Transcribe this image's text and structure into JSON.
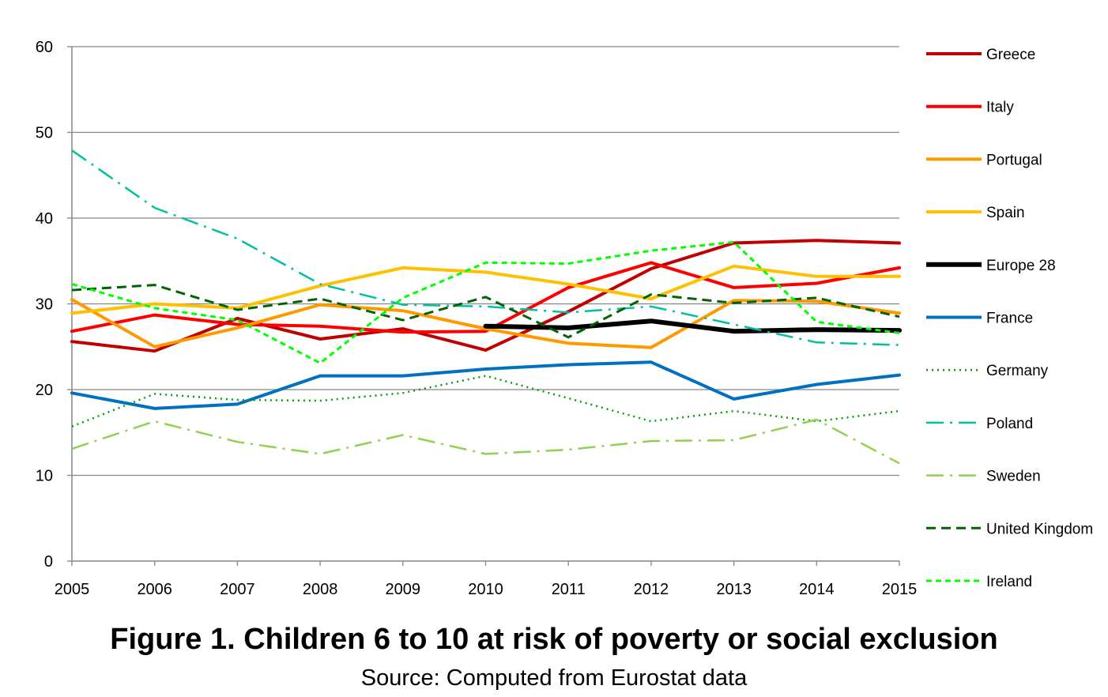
{
  "caption": {
    "title": "Figure 1. Children 6 to 10 at risk of poverty or social exclusion",
    "source": "Source: Computed from Eurostat data"
  },
  "chart_data": {
    "type": "line",
    "title": "",
    "xlabel": "",
    "ylabel": "",
    "x": [
      2005,
      2006,
      2007,
      2008,
      2009,
      2010,
      2011,
      2012,
      2013,
      2014,
      2015
    ],
    "ylim": [
      0,
      60
    ],
    "yticks": [
      0,
      10,
      20,
      30,
      40,
      50,
      60
    ],
    "grid": "horizontal",
    "legend": "right",
    "series": [
      {
        "name": "Greece",
        "color": "#C00000",
        "dash": "solid",
        "width": 4,
        "values": [
          25.6,
          24.5,
          28.3,
          25.9,
          27.1,
          24.6,
          29.1,
          34.1,
          37.1,
          37.4,
          37.1
        ]
      },
      {
        "name": "Italy",
        "color": "#FF0000",
        "dash": "solid",
        "width": 4,
        "values": [
          26.8,
          28.7,
          27.6,
          27.4,
          26.7,
          26.8,
          31.9,
          34.8,
          31.9,
          32.4,
          34.2
        ]
      },
      {
        "name": "Portugal",
        "color": "#FF9900",
        "dash": "solid",
        "width": 4,
        "values": [
          30.5,
          25.0,
          27.2,
          29.9,
          29.2,
          27.1,
          25.4,
          24.9,
          30.4,
          30.3,
          28.9
        ]
      },
      {
        "name": "Spain",
        "color": "#FFC000",
        "dash": "solid",
        "width": 4,
        "values": [
          28.9,
          30.0,
          29.5,
          32.1,
          34.2,
          33.7,
          32.3,
          30.6,
          34.4,
          33.2,
          33.2
        ]
      },
      {
        "name": "Europe 28",
        "color": "#000000",
        "dash": "solid",
        "width": 6,
        "values": [
          null,
          null,
          null,
          null,
          null,
          27.4,
          27.2,
          28.0,
          26.8,
          27.0,
          26.9
        ]
      },
      {
        "name": "France",
        "color": "#0070C0",
        "dash": "solid",
        "width": 4,
        "values": [
          19.6,
          17.8,
          18.3,
          21.6,
          21.6,
          22.4,
          22.9,
          23.2,
          18.9,
          20.6,
          21.7
        ]
      },
      {
        "name": "Germany",
        "color": "#00A000",
        "dash": "dot",
        "width": 2.5,
        "values": [
          15.7,
          19.5,
          18.8,
          18.7,
          19.6,
          21.6,
          19.0,
          16.3,
          17.5,
          16.3,
          17.5
        ]
      },
      {
        "name": "Poland",
        "color": "#00C0A0",
        "dash": "dashdot",
        "width": 2.5,
        "values": [
          47.9,
          41.2,
          37.6,
          32.3,
          29.9,
          29.7,
          29.0,
          29.7,
          27.6,
          25.5,
          25.2
        ]
      },
      {
        "name": "Sweden",
        "color": "#92D050",
        "dash": "dashdot",
        "width": 2.5,
        "values": [
          13.1,
          16.3,
          13.9,
          12.5,
          14.7,
          12.5,
          13.0,
          14.0,
          14.1,
          16.5,
          11.4
        ]
      },
      {
        "name": "United Kingdom",
        "color": "#006400",
        "dash": "dash",
        "width": 3,
        "values": [
          31.6,
          32.2,
          29.3,
          30.6,
          28.1,
          30.8,
          26.1,
          31.1,
          30.1,
          30.7,
          28.5
        ]
      },
      {
        "name": "Ireland",
        "color": "#00FF00",
        "dash": "shortdash",
        "width": 3,
        "values": [
          32.3,
          29.5,
          28.1,
          23.1,
          30.7,
          34.8,
          34.7,
          36.2,
          37.2,
          27.9,
          26.6
        ]
      }
    ]
  }
}
